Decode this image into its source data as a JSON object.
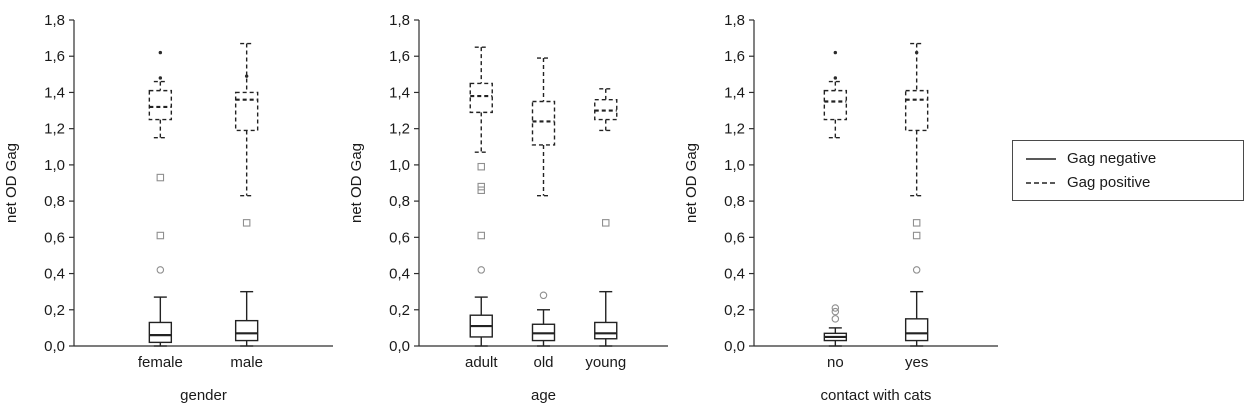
{
  "figure": {
    "background": "#ffffff"
  },
  "colors": {
    "axis": "#2e2e2e",
    "box_stroke": "#222222",
    "outlier_stroke": "#8f8f8f",
    "extreme_fill": "#2b2b2b",
    "text": "#1a1a1a"
  },
  "legend": {
    "items": [
      {
        "label": "Gag negative",
        "line": "solid"
      },
      {
        "label": "Gag positive",
        "line": "dashed"
      }
    ]
  },
  "chart_data": [
    {
      "type": "boxplot",
      "xlabel": "gender",
      "ylabel": "net OD Gag",
      "ylim": [
        0.0,
        1.8
      ],
      "yticks": [
        0.0,
        0.2,
        0.4,
        0.6,
        0.8,
        1.0,
        1.2,
        1.4,
        1.6,
        1.8
      ],
      "ytick_labels": [
        "0,0",
        "0,2",
        "0,4",
        "0,6",
        "0,8",
        "1,0",
        "1,2",
        "1,4",
        "1,6",
        "1,8"
      ],
      "categories": [
        "female",
        "male"
      ],
      "series": [
        {
          "name": "Gag negative",
          "line": "solid",
          "boxes": [
            {
              "category": "female",
              "whisker_low": 0.0,
              "q1": 0.02,
              "median": 0.06,
              "q3": 0.13,
              "whisker_high": 0.27,
              "outlier_circles": [
                0.42
              ],
              "outlier_squares": [],
              "extreme_dots": []
            },
            {
              "category": "male",
              "whisker_low": 0.0,
              "q1": 0.03,
              "median": 0.07,
              "q3": 0.14,
              "whisker_high": 0.3,
              "outlier_circles": [],
              "outlier_squares": [],
              "extreme_dots": []
            }
          ]
        },
        {
          "name": "Gag positive",
          "line": "dashed",
          "boxes": [
            {
              "category": "female",
              "whisker_low": 1.15,
              "q1": 1.25,
              "median": 1.32,
              "q3": 1.41,
              "whisker_high": 1.46,
              "outlier_circles": [],
              "outlier_squares": [
                0.93,
                0.61
              ],
              "extreme_dots": [
                1.48,
                1.62
              ]
            },
            {
              "category": "male",
              "whisker_low": 0.83,
              "q1": 1.19,
              "median": 1.36,
              "q3": 1.4,
              "whisker_high": 1.67,
              "outlier_circles": [],
              "outlier_squares": [
                0.68
              ],
              "extreme_dots": [
                1.49
              ]
            }
          ]
        }
      ]
    },
    {
      "type": "boxplot",
      "xlabel": "age",
      "ylabel": "net OD Gag",
      "ylim": [
        0.0,
        1.8
      ],
      "yticks": [
        0.0,
        0.2,
        0.4,
        0.6,
        0.8,
        1.0,
        1.2,
        1.4,
        1.6,
        1.8
      ],
      "ytick_labels": [
        "0,0",
        "0,2",
        "0,4",
        "0,6",
        "0,8",
        "1,0",
        "1,2",
        "1,4",
        "1,6",
        "1,8"
      ],
      "categories": [
        "adult",
        "old",
        "young"
      ],
      "series": [
        {
          "name": "Gag negative",
          "line": "solid",
          "boxes": [
            {
              "category": "adult",
              "whisker_low": 0.0,
              "q1": 0.05,
              "median": 0.11,
              "q3": 0.17,
              "whisker_high": 0.27,
              "outlier_circles": [
                0.42
              ],
              "outlier_squares": [],
              "extreme_dots": []
            },
            {
              "category": "old",
              "whisker_low": 0.0,
              "q1": 0.03,
              "median": 0.07,
              "q3": 0.12,
              "whisker_high": 0.2,
              "outlier_circles": [
                0.28
              ],
              "outlier_squares": [],
              "extreme_dots": []
            },
            {
              "category": "young",
              "whisker_low": 0.0,
              "q1": 0.04,
              "median": 0.07,
              "q3": 0.13,
              "whisker_high": 0.3,
              "outlier_circles": [],
              "outlier_squares": [],
              "extreme_dots": []
            }
          ]
        },
        {
          "name": "Gag positive",
          "line": "dashed",
          "boxes": [
            {
              "category": "adult",
              "whisker_low": 1.07,
              "q1": 1.29,
              "median": 1.38,
              "q3": 1.45,
              "whisker_high": 1.65,
              "outlier_circles": [],
              "outlier_squares": [
                0.99,
                0.88,
                0.86,
                0.61
              ],
              "extreme_dots": []
            },
            {
              "category": "old",
              "whisker_low": 0.83,
              "q1": 1.11,
              "median": 1.24,
              "q3": 1.35,
              "whisker_high": 1.59,
              "outlier_circles": [],
              "outlier_squares": [],
              "extreme_dots": []
            },
            {
              "category": "young",
              "whisker_low": 1.19,
              "q1": 1.25,
              "median": 1.3,
              "q3": 1.36,
              "whisker_high": 1.42,
              "outlier_circles": [],
              "outlier_squares": [
                0.68
              ],
              "extreme_dots": []
            }
          ]
        }
      ]
    },
    {
      "type": "boxplot",
      "xlabel": "contact with cats",
      "ylabel": "net OD Gag",
      "ylim": [
        0.0,
        1.8
      ],
      "yticks": [
        0.0,
        0.2,
        0.4,
        0.6,
        0.8,
        1.0,
        1.2,
        1.4,
        1.6,
        1.8
      ],
      "ytick_labels": [
        "0,0",
        "0,2",
        "0,4",
        "0,6",
        "0,8",
        "1,0",
        "1,2",
        "1,4",
        "1,6",
        "1,8"
      ],
      "categories": [
        "no",
        "yes"
      ],
      "series": [
        {
          "name": "Gag negative",
          "line": "solid",
          "boxes": [
            {
              "category": "no",
              "whisker_low": 0.0,
              "q1": 0.03,
              "median": 0.05,
              "q3": 0.07,
              "whisker_high": 0.1,
              "outlier_circles": [
                0.15,
                0.19,
                0.21
              ],
              "outlier_squares": [],
              "extreme_dots": []
            },
            {
              "category": "yes",
              "whisker_low": 0.0,
              "q1": 0.03,
              "median": 0.07,
              "q3": 0.15,
              "whisker_high": 0.3,
              "outlier_circles": [
                0.42
              ],
              "outlier_squares": [],
              "extreme_dots": []
            }
          ]
        },
        {
          "name": "Gag positive",
          "line": "dashed",
          "boxes": [
            {
              "category": "no",
              "whisker_low": 1.15,
              "q1": 1.25,
              "median": 1.35,
              "q3": 1.41,
              "whisker_high": 1.46,
              "outlier_circles": [],
              "outlier_squares": [],
              "extreme_dots": [
                1.48,
                1.62
              ]
            },
            {
              "category": "yes",
              "whisker_low": 0.83,
              "q1": 1.19,
              "median": 1.36,
              "q3": 1.41,
              "whisker_high": 1.67,
              "outlier_circles": [],
              "outlier_squares": [
                0.68,
                0.61
              ],
              "extreme_dots": [
                1.62
              ]
            }
          ]
        }
      ]
    }
  ]
}
